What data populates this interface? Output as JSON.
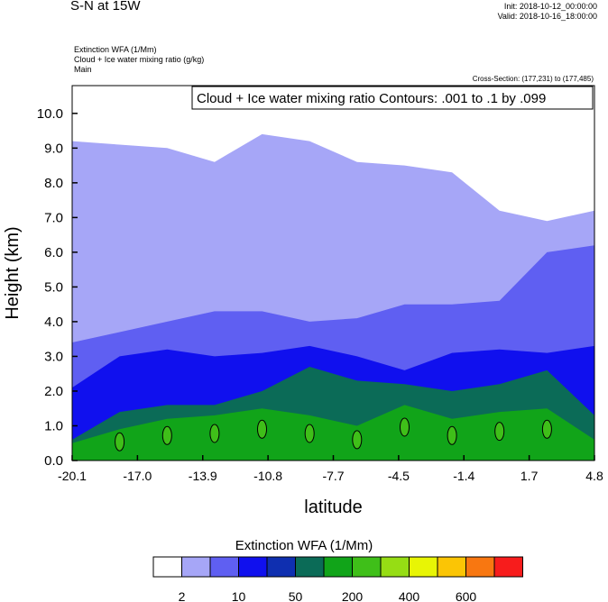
{
  "header": {
    "title": "S-N at 15W",
    "init": "Init: 2018-10-12_00:00:00",
    "valid": "Valid: 2018-10-16_18:00:00",
    "fields": [
      "Extinction WFA   (1/Mm)",
      "Cloud + Ice water mixing ratio   (g/kg)",
      "Main"
    ],
    "cross_section": "Cross-Section: (177,231) to (177,485)"
  },
  "chart_data": {
    "type": "heatmap",
    "title": "S-N at 15W",
    "xlabel": "latitude",
    "ylabel": "Height (km)",
    "xlim": [
      -20.1,
      4.8
    ],
    "ylim": [
      0.0,
      10.8
    ],
    "x_ticks": [
      "-20.1",
      "-17.0",
      "-13.9",
      "-10.8",
      "-7.7",
      "-4.5",
      "-1.4",
      "1.7",
      "4.8"
    ],
    "y_ticks": [
      "0.0",
      "1.0",
      "2.0",
      "3.0",
      "4.0",
      "5.0",
      "6.0",
      "7.0",
      "8.0",
      "9.0",
      "10.0"
    ],
    "contour_label": "Cloud + Ice water mixing ratio Contours: .001 to .1 by .099",
    "colorbar": {
      "title": "Extinction WFA  (1/Mm)",
      "colors": [
        "#ffffff",
        "#a6a6f7",
        "#5f5ff2",
        "#1010ee",
        "#0f2fb0",
        "#0b6b57",
        "#11a419",
        "#3fbf19",
        "#96dd14",
        "#e8f505",
        "#fbc505",
        "#f87711",
        "#f71c1c"
      ],
      "labels": [
        "2",
        "10",
        "50",
        "200",
        "400",
        "600"
      ]
    },
    "layers": [
      {
        "level": "2",
        "color": "#a6a6f7",
        "top_km": [
          9.2,
          9.1,
          9.0,
          8.6,
          9.4,
          9.2,
          8.6,
          8.5,
          8.3,
          7.2,
          6.9,
          7.2
        ]
      },
      {
        "level": "10",
        "color": "#5f5ff2",
        "top_km": [
          3.4,
          3.7,
          4.0,
          4.3,
          4.3,
          4.0,
          4.1,
          4.5,
          4.5,
          4.6,
          6.0,
          6.2
        ]
      },
      {
        "level": "50",
        "color": "#1010ee",
        "top_km": [
          2.1,
          3.0,
          3.2,
          3.0,
          3.1,
          3.3,
          3.0,
          2.6,
          3.1,
          3.2,
          3.1,
          3.3
        ]
      },
      {
        "level": "200",
        "color": "#0b6b57",
        "top_km": [
          0.6,
          1.4,
          1.6,
          1.6,
          2.0,
          2.7,
          2.3,
          2.2,
          2.0,
          2.2,
          2.6,
          1.3
        ]
      },
      {
        "level": "400",
        "color": "#11a419",
        "top_km": [
          0.5,
          0.9,
          1.2,
          1.3,
          1.5,
          1.3,
          1.0,
          1.6,
          1.2,
          1.4,
          1.5,
          0.6
        ]
      }
    ]
  }
}
